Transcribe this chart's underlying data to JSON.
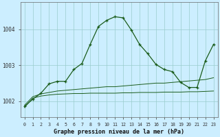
{
  "title": "Graphe pression niveau de la mer (hPa)",
  "background_color": "#cceeff",
  "grid_color": "#99cccc",
  "line_color": "#1a5c1a",
  "xlim": [
    -0.5,
    23.5
  ],
  "ylim": [
    1001.55,
    1004.75
  ],
  "xticks": [
    0,
    1,
    2,
    3,
    4,
    5,
    6,
    7,
    8,
    9,
    10,
    11,
    12,
    13,
    14,
    15,
    16,
    17,
    18,
    19,
    20,
    21,
    22,
    23
  ],
  "ytick_vals": [
    1002,
    1003,
    1004
  ],
  "y_main": [
    1001.85,
    1002.05,
    1002.22,
    1002.48,
    1002.55,
    1002.55,
    1002.88,
    1003.05,
    1003.58,
    1004.08,
    1004.25,
    1004.35,
    1004.32,
    1003.98,
    1003.58,
    1003.32,
    1003.02,
    1002.88,
    1002.82,
    1002.52,
    1002.38,
    1002.38,
    1003.12,
    1003.58
  ],
  "y_upper": [
    1001.88,
    1002.12,
    1002.2,
    1002.24,
    1002.28,
    1002.3,
    1002.32,
    1002.34,
    1002.36,
    1002.38,
    1002.4,
    1002.4,
    1002.42,
    1002.44,
    1002.46,
    1002.48,
    1002.5,
    1002.5,
    1002.52,
    1002.54,
    1002.56,
    1002.58,
    1002.6,
    1002.65
  ],
  "y_lower": [
    1001.82,
    1002.08,
    1002.14,
    1002.17,
    1002.19,
    1002.2,
    1002.21,
    1002.21,
    1002.22,
    1002.22,
    1002.22,
    1002.22,
    1002.23,
    1002.23,
    1002.24,
    1002.24,
    1002.24,
    1002.25,
    1002.25,
    1002.25,
    1002.26,
    1002.26,
    1002.27,
    1002.28
  ],
  "x": [
    0,
    1,
    2,
    3,
    4,
    5,
    6,
    7,
    8,
    9,
    10,
    11,
    12,
    13,
    14,
    15,
    16,
    17,
    18,
    19,
    20,
    21,
    22,
    23
  ]
}
